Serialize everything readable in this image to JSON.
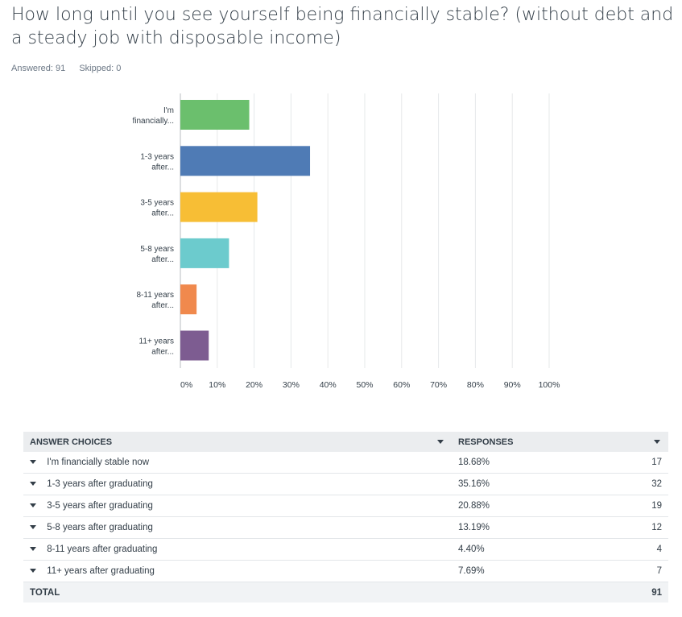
{
  "question": {
    "title": "How long until you see yourself being financially stable? (without debt and a steady job with disposable income)",
    "answered_label": "Answered: 91",
    "skipped_label": "Skipped: 0"
  },
  "chart_data": {
    "type": "bar",
    "orientation": "horizontal",
    "categories": [
      "I'm financially...",
      "1-3 years after...",
      "3-5 years after...",
      "5-8 years after...",
      "8-11 years after...",
      "11+ years after..."
    ],
    "category_lines": [
      [
        "I'm",
        "financially..."
      ],
      [
        "1-3 years",
        "after..."
      ],
      [
        "3-5 years",
        "after..."
      ],
      [
        "5-8 years",
        "after..."
      ],
      [
        "8-11 years",
        "after..."
      ],
      [
        "11+ years",
        "after..."
      ]
    ],
    "values": [
      18.68,
      35.16,
      20.88,
      13.19,
      4.4,
      7.69
    ],
    "colors": [
      "#6bbf6d",
      "#4f7bb5",
      "#f7be35",
      "#6ccbcd",
      "#f0894d",
      "#7d5c91"
    ],
    "xlim": [
      0,
      100
    ],
    "xticks": [
      0,
      10,
      20,
      30,
      40,
      50,
      60,
      70,
      80,
      90,
      100
    ],
    "xtick_labels": [
      "0%",
      "10%",
      "20%",
      "30%",
      "40%",
      "50%",
      "60%",
      "70%",
      "80%",
      "90%",
      "100%"
    ],
    "grid": true,
    "title": "",
    "xlabel": "",
    "ylabel": ""
  },
  "table": {
    "headers": {
      "choices": "ANSWER CHOICES",
      "responses": "RESPONSES"
    },
    "rows": [
      {
        "choice": "I'm financially stable now",
        "percent": "18.68%",
        "count": "17"
      },
      {
        "choice": "1-3 years after graduating",
        "percent": "35.16%",
        "count": "32"
      },
      {
        "choice": "3-5 years after graduating",
        "percent": "20.88%",
        "count": "19"
      },
      {
        "choice": "5-8 years after graduating",
        "percent": "13.19%",
        "count": "12"
      },
      {
        "choice": "8-11 years after graduating",
        "percent": "4.40%",
        "count": "4"
      },
      {
        "choice": "11+ years after graduating",
        "percent": "7.69%",
        "count": "7"
      }
    ],
    "total_label": "TOTAL",
    "total_count": "91"
  }
}
